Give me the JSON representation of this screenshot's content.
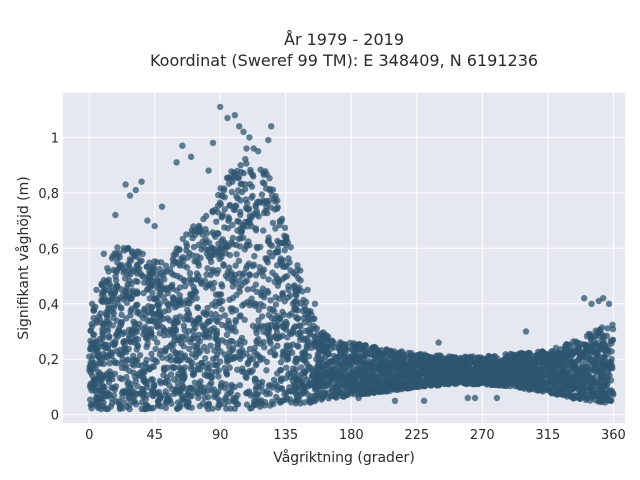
{
  "chart_data": {
    "type": "scatter",
    "title": "År 1979 - 2019",
    "subtitle": "Koordinat (Sweref 99 TM): E 348409, N 6191236",
    "xlabel": "Vågriktning (grader)",
    "ylabel": "Signifikant våghöjd (m)",
    "xlim": [
      -18,
      368
    ],
    "ylim": [
      -0.03,
      1.16
    ],
    "x_ticks": [
      0,
      45,
      90,
      135,
      180,
      225,
      270,
      315,
      360
    ],
    "x_tick_labels": [
      "0",
      "45",
      "90",
      "135",
      "180",
      "225",
      "270",
      "315",
      "360"
    ],
    "y_ticks": [
      0,
      0.2,
      0.4,
      0.6,
      0.8,
      1
    ],
    "y_tick_labels": [
      "0",
      "0,2",
      "0,4",
      "0,6",
      "0,8",
      "1"
    ],
    "grid": true,
    "legend": "none",
    "colors": {
      "marker": "#2f5670",
      "plot_bg": "#e5e8f0",
      "grid": "#ffffff"
    },
    "series": [
      {
        "envelope": {
          "x": [
            0,
            10,
            20,
            30,
            40,
            50,
            60,
            70,
            80,
            90,
            100,
            110,
            120,
            130,
            140,
            150,
            160,
            170,
            180,
            200,
            225,
            250,
            270,
            290,
            315,
            330,
            345,
            360
          ],
          "y_high": [
            0.36,
            0.5,
            0.62,
            0.62,
            0.58,
            0.55,
            0.6,
            0.68,
            0.72,
            0.82,
            0.9,
            0.93,
            0.9,
            0.78,
            0.6,
            0.4,
            0.3,
            0.27,
            0.26,
            0.24,
            0.22,
            0.21,
            0.21,
            0.22,
            0.23,
            0.26,
            0.3,
            0.33
          ],
          "y_low": [
            0.02,
            0.02,
            0.02,
            0.02,
            0.02,
            0.02,
            0.02,
            0.02,
            0.02,
            0.02,
            0.02,
            0.02,
            0.03,
            0.03,
            0.04,
            0.04,
            0.05,
            0.06,
            0.07,
            0.08,
            0.1,
            0.11,
            0.11,
            0.1,
            0.08,
            0.06,
            0.05,
            0.04
          ]
        },
        "outliers": [
          [
            90,
            1.11
          ],
          [
            95,
            1.07
          ],
          [
            100,
            1.08
          ],
          [
            103,
            1.04
          ],
          [
            106,
            1.02
          ],
          [
            110,
            1.0
          ],
          [
            125,
            1.04
          ],
          [
            123,
            0.99
          ],
          [
            85,
            0.98
          ],
          [
            108,
            0.96
          ],
          [
            113,
            0.96
          ],
          [
            116,
            0.95
          ],
          [
            64,
            0.97
          ],
          [
            70,
            0.93
          ],
          [
            60,
            0.91
          ],
          [
            82,
            0.88
          ],
          [
            25,
            0.83
          ],
          [
            32,
            0.81
          ],
          [
            36,
            0.84
          ],
          [
            28,
            0.79
          ],
          [
            50,
            0.75
          ],
          [
            40,
            0.7
          ],
          [
            45,
            0.68
          ],
          [
            18,
            0.72
          ],
          [
            10,
            0.58
          ],
          [
            5,
            0.45
          ],
          [
            2,
            0.4
          ],
          [
            150,
            0.45
          ],
          [
            145,
            0.52
          ],
          [
            155,
            0.4
          ],
          [
            300,
            0.3
          ],
          [
            340,
            0.42
          ],
          [
            345,
            0.4
          ],
          [
            350,
            0.41
          ],
          [
            353,
            0.42
          ],
          [
            357,
            0.4
          ],
          [
            230,
            0.05
          ],
          [
            260,
            0.06
          ],
          [
            265,
            0.06
          ],
          [
            280,
            0.06
          ],
          [
            240,
            0.26
          ],
          [
            210,
            0.05
          ],
          [
            185,
            0.06
          ]
        ]
      }
    ]
  }
}
